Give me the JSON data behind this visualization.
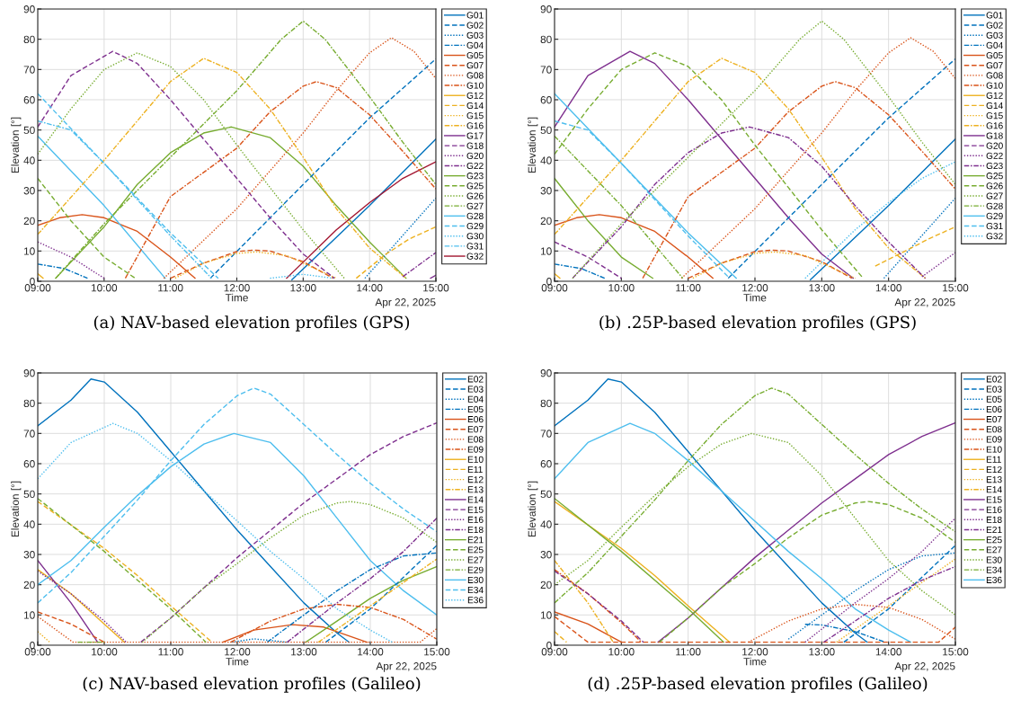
{
  "chart_data": [
    {
      "type": "line",
      "title": "(a) NAV-based elevation profiles (GPS)",
      "xlabel": "Time",
      "ylabel": "Elevation [°]",
      "annotations": [
        "Apr 22, 2025"
      ],
      "xlim": [
        9,
        15
      ],
      "ylim": [
        0,
        90
      ],
      "xticks": [
        {
          "value": 9,
          "label": "09:00"
        },
        {
          "value": 10,
          "label": "10:00"
        },
        {
          "value": 11,
          "label": "11:00"
        },
        {
          "value": 12,
          "label": "12:00"
        },
        {
          "value": 13,
          "label": "13:00"
        },
        {
          "value": 14,
          "label": "14:00"
        },
        {
          "value": 15,
          "label": "15:00"
        }
      ],
      "yticks": [
        0,
        10,
        20,
        30,
        40,
        50,
        60,
        70,
        80,
        90
      ],
      "grid": true,
      "legend": "right",
      "marker": "none",
      "series": [
        {
          "name": "G01",
          "color": "#0072bd",
          "line_style": "solid",
          "x": [
            12.83,
            14,
            15
          ],
          "values": [
            0.5,
            25,
            47
          ]
        },
        {
          "name": "G02",
          "color": "#0072bd",
          "line_style": "dashed",
          "x": [
            11.6,
            13,
            14,
            15
          ],
          "values": [
            1,
            32,
            54,
            73.5
          ]
        },
        {
          "name": "G03",
          "color": "#0072bd",
          "line_style": "dotted",
          "x": [
            13.93,
            15
          ],
          "values": [
            1,
            27.5
          ]
        },
        {
          "name": "G04",
          "color": "#0072bd",
          "line_style": "dashdot",
          "x": [
            9,
            9.4,
            9.75
          ],
          "values": [
            5.7,
            4.2,
            1
          ]
        },
        {
          "name": "G05",
          "color": "#d95319",
          "line_style": "solid",
          "x": [
            9,
            9.33,
            9.67,
            10,
            10.5,
            11,
            11.37
          ],
          "values": [
            18.5,
            21,
            22,
            21,
            16.5,
            8,
            1
          ]
        },
        {
          "name": "G07",
          "color": "#d95319",
          "line_style": "dashed",
          "x": [
            11,
            11.5,
            12,
            12.25,
            12.5,
            13,
            13.45
          ],
          "values": [
            1,
            6,
            9.8,
            10.3,
            10,
            6.5,
            1
          ]
        },
        {
          "name": "G08",
          "color": "#d95319",
          "line_style": "dotted",
          "x": [
            10.9,
            12,
            13,
            13.5,
            14,
            14.33,
            14.67,
            15
          ],
          "values": [
            1,
            24,
            49,
            63,
            75.5,
            80.5,
            76,
            67
          ]
        },
        {
          "name": "G10",
          "color": "#d95319",
          "line_style": "dashdot",
          "x": [
            10.32,
            11,
            12,
            12.5,
            13,
            13.2,
            13.5,
            14,
            14.5,
            15
          ],
          "values": [
            1,
            28,
            44,
            56,
            64.5,
            66,
            64,
            55,
            43,
            30.5
          ]
        },
        {
          "name": "G12",
          "color": "#edb120",
          "line_style": "solid",
          "x": [
            9,
            9.08
          ],
          "values": [
            2.5,
            1
          ]
        },
        {
          "name": "G14",
          "color": "#edb120",
          "line_style": "dashed",
          "x": [
            13.8,
            14.25,
            14.6,
            15
          ],
          "values": [
            1,
            9,
            14,
            18
          ]
        },
        {
          "name": "G15",
          "color": "#edb120",
          "line_style": "dotted",
          "x": [
            11.07,
            11.5,
            12,
            12.3,
            12.75,
            13.4,
            13.5
          ],
          "values": [
            1,
            6,
            9.2,
            9.7,
            8.5,
            2,
            1
          ]
        },
        {
          "name": "G16",
          "color": "#edb120",
          "line_style": "dashdot",
          "x": [
            9,
            10,
            10.5,
            11,
            11.5,
            12,
            12.5,
            13,
            13.5,
            14,
            14.55
          ],
          "values": [
            15.5,
            40,
            53,
            66,
            73.7,
            69,
            57,
            41,
            24,
            11,
            1
          ]
        },
        {
          "name": "G17",
          "color": "#7e2f8e",
          "line_style": "solid",
          "x": [
            14.92,
            15
          ],
          "values": [
            1,
            2
          ]
        },
        {
          "name": "G18",
          "color": "#7e2f8e",
          "line_style": "dashed",
          "x": [
            9,
            9.5,
            10.13,
            10.5,
            11,
            11.5,
            12,
            12.5,
            13,
            13.47
          ],
          "values": [
            51,
            68,
            76,
            72,
            60,
            47,
            34,
            21,
            9,
            1
          ]
        },
        {
          "name": "G20",
          "color": "#7e2f8e",
          "line_style": "dotted",
          "x": [
            9,
            9.5,
            10
          ],
          "values": [
            13,
            8,
            1
          ]
        },
        {
          "name": "G22",
          "color": "#7e2f8e",
          "line_style": "dashdot",
          "x": [
            14.5,
            15
          ],
          "values": [
            1.5,
            9.5
          ]
        },
        {
          "name": "G23",
          "color": "#77ac30",
          "line_style": "solid",
          "x": [
            9.27,
            10,
            10.5,
            11,
            11.5,
            11.92,
            12.5,
            13,
            13.5,
            14,
            14.55
          ],
          "values": [
            1,
            18,
            32,
            42.5,
            49,
            51,
            47.5,
            38,
            25,
            13,
            1
          ]
        },
        {
          "name": "G25",
          "color": "#77ac30",
          "line_style": "dashed",
          "x": [
            9,
            9.5,
            10,
            10.47
          ],
          "values": [
            34,
            20,
            8,
            1
          ]
        },
        {
          "name": "G26",
          "color": "#77ac30",
          "line_style": "dotted",
          "x": [
            9,
            9.5,
            10,
            10.5,
            11,
            11.5,
            12,
            12.5,
            13,
            13.62
          ],
          "values": [
            42,
            57,
            70,
            75.5,
            71,
            60,
            45,
            31,
            17,
            1
          ]
        },
        {
          "name": "G27",
          "color": "#77ac30",
          "line_style": "dashdot",
          "x": [
            9.27,
            10,
            11,
            12,
            12.67,
            13,
            13.33,
            14,
            14.5,
            15
          ],
          "values": [
            1,
            19,
            41,
            63,
            80,
            86,
            80,
            61,
            46,
            32
          ]
        },
        {
          "name": "G28",
          "color": "#4dbeee",
          "line_style": "solid",
          "x": [
            9,
            10,
            10.92
          ],
          "values": [
            48,
            25,
            1
          ]
        },
        {
          "name": "G29",
          "color": "#4dbeee",
          "line_style": "dashed",
          "x": [
            9,
            10,
            11,
            11.72
          ],
          "values": [
            62,
            39,
            16,
            1
          ]
        },
        {
          "name": "G30",
          "color": "#4dbeee",
          "line_style": "dotted",
          "x": [
            12.5,
            13,
            13.45
          ],
          "values": [
            1,
            2.3,
            1
          ]
        },
        {
          "name": "G31",
          "color": "#4dbeee",
          "line_style": "dashdot",
          "x": [
            9,
            9.5,
            10,
            10.5,
            11,
            11.62
          ],
          "values": [
            53,
            50,
            39,
            27,
            15,
            1
          ]
        },
        {
          "name": "G32",
          "color": "#a2142f",
          "line_style": "solid",
          "x": [
            12.75,
            13.5,
            14,
            14.5,
            15
          ],
          "values": [
            1,
            17,
            26,
            34,
            39.5
          ]
        }
      ]
    },
    {
      "type": "line",
      "title": "(b) .25P-based elevation profiles (GPS)",
      "xlabel": "Time",
      "ylabel": "Elevation [°]",
      "annotations": [
        "Apr 22, 2025"
      ],
      "xlim": [
        9,
        15
      ],
      "ylim": [
        0,
        90
      ],
      "xticks": [
        {
          "value": 9,
          "label": "09:00"
        },
        {
          "value": 10,
          "label": "10:00"
        },
        {
          "value": 11,
          "label": "11:00"
        },
        {
          "value": 12,
          "label": "12:00"
        },
        {
          "value": 13,
          "label": "13:00"
        },
        {
          "value": 14,
          "label": "14:00"
        },
        {
          "value": 15,
          "label": "15:00"
        }
      ],
      "yticks": [
        0,
        10,
        20,
        30,
        40,
        50,
        60,
        70,
        80,
        90
      ],
      "grid": true,
      "legend": "right",
      "marker": "none",
      "series": [
        {
          "name": "G01",
          "color": "#0072bd",
          "line_style": "solid",
          "x": [
            12.83,
            14,
            15
          ],
          "values": [
            0.5,
            25,
            47
          ]
        },
        {
          "name": "G02",
          "color": "#0072bd",
          "line_style": "dashed",
          "x": [
            11.6,
            13,
            14,
            15
          ],
          "values": [
            1,
            32,
            54,
            73.5
          ]
        },
        {
          "name": "G03",
          "color": "#0072bd",
          "line_style": "dotted",
          "x": [
            13.93,
            15
          ],
          "values": [
            1,
            27.5
          ]
        },
        {
          "name": "G04",
          "color": "#0072bd",
          "line_style": "dashdot",
          "x": [
            9,
            9.4,
            9.75
          ],
          "values": [
            5.7,
            4.2,
            1
          ]
        },
        {
          "name": "G05",
          "color": "#d95319",
          "line_style": "solid",
          "x": [
            9,
            9.33,
            9.67,
            10,
            10.5,
            11,
            11.37
          ],
          "values": [
            18.5,
            21,
            22,
            21,
            16.5,
            8,
            1
          ]
        },
        {
          "name": "G07",
          "color": "#d95319",
          "line_style": "dashed",
          "x": [
            11,
            11.5,
            12,
            12.25,
            12.5,
            13,
            13.45
          ],
          "values": [
            1,
            6,
            9.8,
            10.3,
            10,
            6.5,
            1
          ]
        },
        {
          "name": "G08",
          "color": "#d95319",
          "line_style": "dotted",
          "x": [
            10.9,
            12,
            13,
            13.5,
            14,
            14.33,
            14.67,
            15
          ],
          "values": [
            1,
            24,
            49,
            63,
            75.5,
            80.5,
            76,
            67
          ]
        },
        {
          "name": "G10",
          "color": "#d95319",
          "line_style": "dashdot",
          "x": [
            10.32,
            11,
            12,
            12.5,
            13,
            13.2,
            13.5,
            14,
            14.5,
            15
          ],
          "values": [
            1,
            28,
            44,
            56,
            64.5,
            66,
            64,
            55,
            43,
            30.5
          ]
        },
        {
          "name": "G12",
          "color": "#edb120",
          "line_style": "solid",
          "x": [
            9,
            9.08
          ],
          "values": [
            2.5,
            1
          ]
        },
        {
          "name": "G14",
          "color": "#edb120",
          "line_style": "dashed",
          "x": [
            13.8,
            14.25,
            14.6,
            15
          ],
          "values": [
            5,
            10,
            14,
            18
          ]
        },
        {
          "name": "G15",
          "color": "#edb120",
          "line_style": "dotted",
          "x": [
            11.07,
            11.5,
            12,
            12.3,
            12.75,
            13.4,
            13.5
          ],
          "values": [
            1,
            6,
            9.2,
            9.7,
            8.5,
            2,
            1
          ]
        },
        {
          "name": "G16",
          "color": "#edb120",
          "line_style": "dashdot",
          "x": [
            9,
            10,
            10.5,
            11,
            11.5,
            12,
            12.5,
            13,
            13.5,
            14,
            14.55
          ],
          "values": [
            15.5,
            40,
            53,
            66,
            73.7,
            69,
            57,
            41,
            24,
            11,
            1
          ]
        },
        {
          "name": "G18",
          "color": "#7e2f8e",
          "line_style": "solid",
          "x": [
            9,
            9.5,
            10.13,
            10.5,
            11,
            11.5,
            12,
            12.5,
            13,
            13.47
          ],
          "values": [
            51,
            68,
            76,
            72,
            60,
            47,
            34,
            21,
            9,
            1
          ]
        },
        {
          "name": "G20",
          "color": "#7e2f8e",
          "line_style": "dashed",
          "x": [
            9,
            9.5,
            10
          ],
          "values": [
            13,
            8,
            1
          ]
        },
        {
          "name": "G22",
          "color": "#7e2f8e",
          "line_style": "dotted",
          "x": [
            14.5,
            15
          ],
          "values": [
            1.5,
            9.5
          ]
        },
        {
          "name": "G23",
          "color": "#7e2f8e",
          "line_style": "dashdot",
          "x": [
            9.27,
            10,
            10.5,
            11,
            11.5,
            11.92,
            12.5,
            13,
            13.5,
            14,
            14.55
          ],
          "values": [
            1,
            18,
            32,
            42.5,
            49,
            51,
            47.5,
            38,
            25,
            13,
            1
          ]
        },
        {
          "name": "G25",
          "color": "#77ac30",
          "line_style": "solid",
          "x": [
            9,
            9.5,
            10,
            10.47
          ],
          "values": [
            34,
            20,
            8,
            1
          ]
        },
        {
          "name": "G26",
          "color": "#77ac30",
          "line_style": "dashed",
          "x": [
            9,
            9.5,
            10,
            10.5,
            11,
            11.5,
            12,
            12.5,
            13,
            13.62
          ],
          "values": [
            42,
            57,
            70,
            75.5,
            71,
            60,
            45,
            31,
            17,
            1
          ]
        },
        {
          "name": "G27",
          "color": "#77ac30",
          "line_style": "dotted",
          "x": [
            9.27,
            10,
            11,
            12,
            12.67,
            13,
            13.33,
            14,
            14.5,
            15
          ],
          "values": [
            1,
            19,
            41,
            63,
            80,
            86,
            80,
            61,
            46,
            32
          ]
        },
        {
          "name": "G28",
          "color": "#77ac30",
          "line_style": "dashdot",
          "x": [
            9,
            10,
            10.92
          ],
          "values": [
            48,
            25,
            1
          ]
        },
        {
          "name": "G29",
          "color": "#4dbeee",
          "line_style": "solid",
          "x": [
            9,
            10,
            11,
            11.72
          ],
          "values": [
            62,
            39,
            16,
            1
          ]
        },
        {
          "name": "G31",
          "color": "#4dbeee",
          "line_style": "dashed",
          "x": [
            9,
            9.5,
            10,
            10.5,
            11,
            11.62
          ],
          "values": [
            53,
            50,
            39,
            27,
            15,
            1
          ]
        },
        {
          "name": "G32",
          "color": "#4dbeee",
          "line_style": "dotted",
          "x": [
            12.75,
            13.5,
            14,
            14.5,
            15
          ],
          "values": [
            1,
            17,
            26,
            34,
            39.5
          ]
        }
      ]
    },
    {
      "type": "line",
      "title": "(c) NAV-based elevation profiles (Galileo)",
      "xlabel": "Time",
      "ylabel": "Elevation [°]",
      "annotations": [
        "Apr 22, 2025"
      ],
      "xlim": [
        9,
        15
      ],
      "ylim": [
        0,
        90
      ],
      "xticks": [
        {
          "value": 9,
          "label": "09:00"
        },
        {
          "value": 10,
          "label": "10:00"
        },
        {
          "value": 11,
          "label": "11:00"
        },
        {
          "value": 12,
          "label": "12:00"
        },
        {
          "value": 13,
          "label": "13:00"
        },
        {
          "value": 14,
          "label": "14:00"
        },
        {
          "value": 15,
          "label": "15:00"
        }
      ],
      "yticks": [
        0,
        10,
        20,
        30,
        40,
        50,
        60,
        70,
        80,
        90
      ],
      "grid": true,
      "legend": "right",
      "marker": "none",
      "series": [
        {
          "name": "E02",
          "color": "#0072bd",
          "line_style": "solid",
          "x": [
            9,
            9.5,
            9.8,
            10,
            10.5,
            11,
            11.5,
            12,
            12.5,
            13,
            13.5,
            13.68
          ],
          "values": [
            72.5,
            81,
            88,
            87,
            77,
            64,
            51,
            38,
            26,
            14,
            4,
            1
          ]
        },
        {
          "name": "E03",
          "color": "#0072bd",
          "line_style": "dashed",
          "x": [
            13.33,
            14,
            15
          ],
          "values": [
            1,
            12,
            33
          ]
        },
        {
          "name": "E04",
          "color": "#0072bd",
          "line_style": "dotted",
          "x": [
            11.92,
            12.25,
            12.75
          ],
          "values": [
            1,
            2.1,
            1
          ]
        },
        {
          "name": "E05",
          "color": "#0072bd",
          "line_style": "dashdot",
          "x": [
            12.45,
            13,
            13.5,
            14,
            14.5,
            15
          ],
          "values": [
            1,
            10,
            18,
            25,
            29.5,
            30.5
          ]
        },
        {
          "name": "E06",
          "color": "#d95319",
          "line_style": "solid",
          "x": [
            11.78,
            12.25,
            12.83,
            13.3,
            13.95
          ],
          "values": [
            1,
            5,
            6.8,
            6,
            1
          ]
        },
        {
          "name": "E07",
          "color": "#d95319",
          "line_style": "dashed",
          "x": [
            9,
            9.5,
            10
          ],
          "values": [
            11,
            7,
            1
          ]
        },
        {
          "name": "E08",
          "color": "#d95319",
          "line_style": "dotted",
          "x": [
            9,
            9.53,
            14.75,
            15
          ],
          "values": [
            9.5,
            1,
            1,
            5.5
          ]
        },
        {
          "name": "E09",
          "color": "#d95319",
          "line_style": "dashdot",
          "x": [
            11.9,
            12.5,
            13,
            13.5,
            14,
            14.5,
            15
          ],
          "values": [
            1,
            8,
            12,
            13.5,
            12.5,
            8.5,
            2
          ]
        },
        {
          "name": "E10",
          "color": "#edb120",
          "line_style": "solid",
          "x": [
            9,
            9.5,
            10,
            10.3
          ],
          "values": [
            25,
            17,
            7,
            1
          ]
        },
        {
          "name": "E11",
          "color": "#edb120",
          "line_style": "dashed",
          "x": [
            9,
            10,
            10.5,
            11,
            11.62
          ],
          "values": [
            47.5,
            32,
            23,
            13,
            1
          ]
        },
        {
          "name": "E12",
          "color": "#edb120",
          "line_style": "dotted",
          "x": [
            9,
            9.18
          ],
          "values": [
            4.5,
            1
          ]
        },
        {
          "name": "E13",
          "color": "#edb120",
          "line_style": "dashdot",
          "x": [
            13.22,
            14,
            15
          ],
          "values": [
            1,
            13,
            28.5
          ]
        },
        {
          "name": "E14",
          "color": "#7e2f8e",
          "line_style": "solid",
          "x": [
            9,
            9.5,
            9.9
          ],
          "values": [
            28,
            14,
            1
          ]
        },
        {
          "name": "E15",
          "color": "#7e2f8e",
          "line_style": "dashed",
          "x": [
            10.55,
            11,
            11.5,
            12,
            12.5,
            13,
            13.5,
            14,
            14.5,
            15
          ],
          "values": [
            1,
            9,
            19,
            29,
            38,
            47,
            55,
            63,
            69,
            73.5
          ]
        },
        {
          "name": "E16",
          "color": "#7e2f8e",
          "line_style": "dotted",
          "x": [
            9,
            9.5,
            10,
            10.33
          ],
          "values": [
            24.5,
            17,
            8,
            1
          ]
        },
        {
          "name": "E18",
          "color": "#7e2f8e",
          "line_style": "dashdot",
          "x": [
            12.75,
            13.5,
            14,
            14.5,
            15
          ],
          "values": [
            1,
            14,
            22,
            31,
            42
          ]
        },
        {
          "name": "E21",
          "color": "#77ac30",
          "line_style": "solid",
          "x": [
            13.03,
            13.5,
            14,
            14.5,
            15
          ],
          "values": [
            1,
            8,
            15.5,
            21.5,
            26
          ]
        },
        {
          "name": "E25",
          "color": "#77ac30",
          "line_style": "dashed",
          "x": [
            9,
            10,
            11,
            11.53
          ],
          "values": [
            48.5,
            31,
            12,
            1
          ]
        },
        {
          "name": "E27",
          "color": "#77ac30",
          "line_style": "dotted",
          "x": [
            10.57,
            11,
            11.5,
            12,
            12.5,
            13,
            13.5,
            13.7,
            14,
            14.5,
            15
          ],
          "values": [
            1,
            9,
            19,
            27,
            35.5,
            43,
            47,
            47.5,
            46.5,
            42,
            34
          ]
        },
        {
          "name": "E29",
          "color": "#77ac30",
          "line_style": "dashdot",
          "x": [
            9.6,
            10
          ],
          "values": [
            1,
            1
          ]
        },
        {
          "name": "E30",
          "color": "#4dbeee",
          "line_style": "solid",
          "x": [
            9,
            9.5,
            10,
            10.5,
            11,
            11.5,
            11.95,
            12.5,
            13,
            13.5,
            14,
            14.5,
            15
          ],
          "values": [
            20,
            28,
            39,
            49.5,
            59,
            66.5,
            70,
            67,
            56,
            42,
            28,
            18,
            10
          ]
        },
        {
          "name": "E34",
          "color": "#4dbeee",
          "line_style": "dashed",
          "x": [
            9,
            9.5,
            10,
            10.5,
            11,
            11.5,
            12,
            12.25,
            12.5,
            13,
            13.5,
            14,
            14.5,
            15
          ],
          "values": [
            14,
            24,
            36,
            48,
            61,
            73,
            82.5,
            85,
            83,
            73,
            63,
            53.5,
            45,
            37.5
          ]
        },
        {
          "name": "E36",
          "color": "#4dbeee",
          "line_style": "dotted",
          "x": [
            9,
            9.5,
            10.13,
            10.5,
            11,
            11.5,
            12,
            12.5,
            13,
            13.5,
            14,
            14.33
          ],
          "values": [
            55,
            67,
            73.3,
            70,
            61,
            51,
            41,
            31,
            22,
            12,
            5,
            1
          ]
        }
      ]
    },
    {
      "type": "line",
      "title": "(d) .25P-based elevation profiles (Galileo)",
      "xlabel": "Time",
      "ylabel": "Elevation [°]",
      "annotations": [
        "Apr 22, 2025"
      ],
      "xlim": [
        9,
        15
      ],
      "ylim": [
        0,
        90
      ],
      "xticks": [
        {
          "value": 9,
          "label": "09:00"
        },
        {
          "value": 10,
          "label": "10:00"
        },
        {
          "value": 11,
          "label": "11:00"
        },
        {
          "value": 12,
          "label": "12:00"
        },
        {
          "value": 13,
          "label": "13:00"
        },
        {
          "value": 14,
          "label": "14:00"
        },
        {
          "value": 15,
          "label": "15:00"
        }
      ],
      "yticks": [
        0,
        10,
        20,
        30,
        40,
        50,
        60,
        70,
        80,
        90
      ],
      "grid": true,
      "legend": "right",
      "marker": "none",
      "series": [
        {
          "name": "E02",
          "color": "#0072bd",
          "line_style": "solid",
          "x": [
            9,
            9.5,
            9.8,
            10,
            10.5,
            11,
            11.5,
            12,
            12.5,
            13,
            13.5,
            13.68
          ],
          "values": [
            72.5,
            81,
            88,
            87,
            77,
            64,
            51,
            38,
            26,
            14,
            4,
            1
          ]
        },
        {
          "name": "E03",
          "color": "#0072bd",
          "line_style": "dashed",
          "x": [
            13.33,
            14,
            15
          ],
          "values": [
            1,
            12,
            33
          ]
        },
        {
          "name": "E05",
          "color": "#0072bd",
          "line_style": "dotted",
          "x": [
            12.5,
            13,
            13.5,
            14,
            14.5,
            15
          ],
          "values": [
            2,
            10,
            18,
            25,
            29.5,
            30.5
          ]
        },
        {
          "name": "E06",
          "color": "#0072bd",
          "line_style": "dashdot",
          "x": [
            12.75,
            13,
            13.5,
            13.95
          ],
          "values": [
            6.9,
            6.7,
            4.5,
            1
          ]
        },
        {
          "name": "E07",
          "color": "#d95319",
          "line_style": "solid",
          "x": [
            9,
            9.5,
            10
          ],
          "values": [
            11,
            7,
            1
          ]
        },
        {
          "name": "E08",
          "color": "#d95319",
          "line_style": "dashed",
          "x": [
            9,
            9.5,
            14.75,
            15
          ],
          "values": [
            9.5,
            1,
            1,
            6
          ]
        },
        {
          "name": "E09",
          "color": "#d95319",
          "line_style": "dotted",
          "x": [
            11.9,
            12.5,
            13,
            13.5,
            14,
            14.5,
            15
          ],
          "values": [
            1,
            8,
            12,
            13.5,
            12.5,
            8.5,
            2
          ]
        },
        {
          "name": "E10",
          "color": "#d95319",
          "line_style": "dashdot",
          "x": [
            9,
            9.5,
            10,
            10.3
          ],
          "values": [
            25,
            17,
            7.5,
            1
          ]
        },
        {
          "name": "E11",
          "color": "#edb120",
          "line_style": "solid",
          "x": [
            9,
            10,
            10.5,
            11,
            11.62
          ],
          "values": [
            47.5,
            32,
            23,
            13,
            1
          ]
        },
        {
          "name": "E12",
          "color": "#edb120",
          "line_style": "dashed",
          "x": [
            9,
            9.18
          ],
          "values": [
            4.5,
            1
          ]
        },
        {
          "name": "E13",
          "color": "#edb120",
          "line_style": "dotted",
          "x": [
            13.22,
            14,
            15
          ],
          "values": [
            1,
            13,
            28.5
          ]
        },
        {
          "name": "E14",
          "color": "#edb120",
          "line_style": "dashdot",
          "x": [
            9,
            9.5,
            9.88
          ],
          "values": [
            28,
            14,
            1
          ]
        },
        {
          "name": "E15",
          "color": "#7e2f8e",
          "line_style": "solid",
          "x": [
            10.55,
            11,
            11.5,
            12,
            12.5,
            13,
            13.5,
            14,
            14.5,
            15
          ],
          "values": [
            1,
            9,
            19,
            29,
            38,
            47,
            55,
            63,
            69,
            73.5
          ]
        },
        {
          "name": "E16",
          "color": "#7e2f8e",
          "line_style": "dashed",
          "x": [
            9,
            9.5,
            10,
            10.33
          ],
          "values": [
            24.5,
            17,
            8,
            1
          ]
        },
        {
          "name": "E18",
          "color": "#7e2f8e",
          "line_style": "dotted",
          "x": [
            12.75,
            13.5,
            14,
            14.5,
            15
          ],
          "values": [
            1,
            14,
            22,
            31,
            42
          ]
        },
        {
          "name": "E21",
          "color": "#7e2f8e",
          "line_style": "dashdot",
          "x": [
            13.03,
            13.5,
            14,
            14.5,
            15
          ],
          "values": [
            1,
            8,
            15.5,
            21.5,
            26
          ]
        },
        {
          "name": "E25",
          "color": "#77ac30",
          "line_style": "solid",
          "x": [
            9,
            10,
            11,
            11.53
          ],
          "values": [
            48.5,
            31,
            12,
            1
          ]
        },
        {
          "name": "E27",
          "color": "#77ac30",
          "line_style": "dashed",
          "x": [
            10.57,
            11,
            11.5,
            12,
            12.5,
            13,
            13.5,
            13.7,
            14,
            14.5,
            15
          ],
          "values": [
            1,
            9,
            19,
            27,
            35.5,
            43,
            47,
            47.5,
            46.5,
            42,
            34
          ]
        },
        {
          "name": "E30",
          "color": "#77ac30",
          "line_style": "dotted",
          "x": [
            9,
            9.5,
            10,
            10.5,
            11,
            11.5,
            11.95,
            12.5,
            13,
            13.5,
            14,
            14.5,
            15
          ],
          "values": [
            20,
            28,
            39,
            49.5,
            59,
            66.5,
            70,
            67,
            56,
            42,
            28,
            18,
            10
          ]
        },
        {
          "name": "E34",
          "color": "#77ac30",
          "line_style": "dashdot",
          "x": [
            9,
            9.5,
            10,
            10.5,
            11,
            11.5,
            12,
            12.25,
            12.5,
            13,
            13.5,
            14,
            14.5,
            15
          ],
          "values": [
            14,
            24,
            36,
            48,
            61,
            73,
            82.5,
            85,
            83,
            73,
            63,
            53.5,
            45,
            37.5
          ]
        },
        {
          "name": "E36",
          "color": "#4dbeee",
          "line_style": "solid",
          "x": [
            9,
            9.5,
            10.13,
            10.5,
            11,
            11.5,
            12,
            12.5,
            13,
            13.5,
            14,
            14.33
          ],
          "values": [
            55,
            67,
            73.3,
            70,
            61,
            51,
            41,
            31,
            22,
            12,
            5,
            1
          ]
        }
      ]
    }
  ]
}
